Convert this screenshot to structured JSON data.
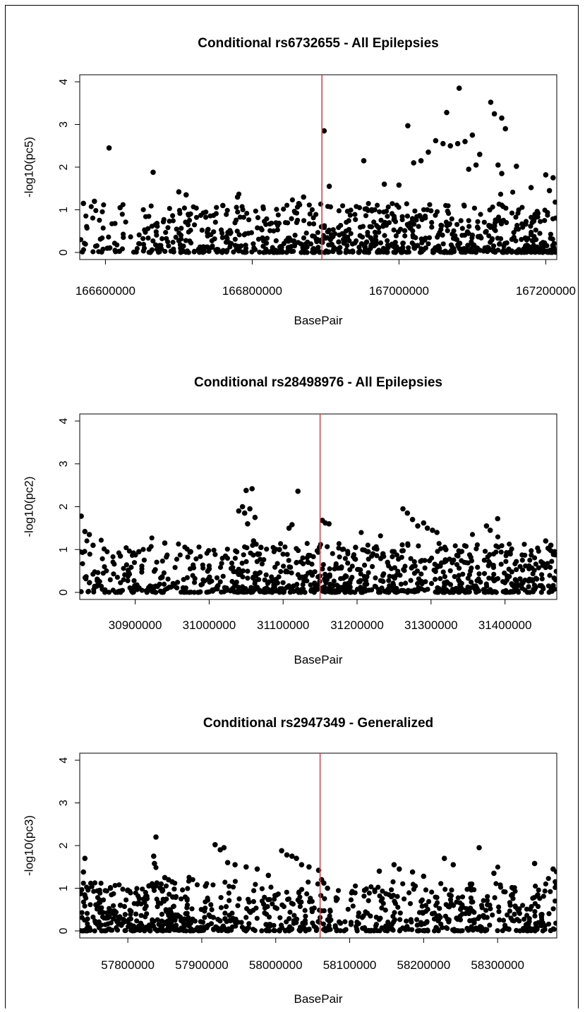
{
  "figure": {
    "colors": {
      "points": "#000000",
      "marker_line": "#d9454e",
      "axis": "#000000"
    }
  },
  "chart_data": [
    {
      "type": "scatter",
      "title": "Conditional rs6732655 - All Epilepsies",
      "xlabel": "BasePair",
      "ylabel": "-log10(pc5)",
      "xlim": [
        166565000,
        167215000
      ],
      "ylim": [
        0,
        4
      ],
      "xticks": [
        166600000,
        166800000,
        167000000,
        167200000
      ],
      "xtick_labels": [
        "166600000",
        "166800000",
        "167000000",
        "167200000"
      ],
      "yticks": [
        0,
        1,
        2,
        3,
        4
      ],
      "ytick_labels": [
        "0",
        "1",
        "2",
        "3",
        "4"
      ],
      "marker_line_x": 166895000,
      "grid": false,
      "legend": "none",
      "density": [
        {
          "from": 166565000,
          "to": 166650000,
          "w": 1.0
        },
        {
          "from": 166650000,
          "to": 166880000,
          "w": 2.2
        },
        {
          "from": 166880000,
          "to": 167215000,
          "w": 3.0
        }
      ],
      "points": [
        [
          166605000,
          2.45
        ],
        [
          166665000,
          1.88
        ],
        [
          166898000,
          2.85
        ],
        [
          166952000,
          2.15
        ],
        [
          167012000,
          2.97
        ],
        [
          167065000,
          3.28
        ],
        [
          167082000,
          3.85
        ],
        [
          167125000,
          3.52
        ],
        [
          167130000,
          3.25
        ],
        [
          167140000,
          3.15
        ],
        [
          167145000,
          2.9
        ],
        [
          167100000,
          2.75
        ],
        [
          167090000,
          2.6
        ],
        [
          167080000,
          2.55
        ],
        [
          167070000,
          2.5
        ],
        [
          167060000,
          2.55
        ],
        [
          167050000,
          2.62
        ],
        [
          167040000,
          2.35
        ],
        [
          167030000,
          2.15
        ],
        [
          167020000,
          2.1
        ],
        [
          167110000,
          2.3
        ],
        [
          167105000,
          2.05
        ],
        [
          167095000,
          1.95
        ],
        [
          167135000,
          2.05
        ],
        [
          167140000,
          1.85
        ],
        [
          167160000,
          2.02
        ],
        [
          167180000,
          1.52
        ],
        [
          167200000,
          1.82
        ],
        [
          167210000,
          1.75
        ],
        [
          167205000,
          1.45
        ],
        [
          166700000,
          1.42
        ],
        [
          166710000,
          1.35
        ],
        [
          166780000,
          1.3
        ],
        [
          166870000,
          1.3
        ],
        [
          166760000,
          1.1
        ],
        [
          166570000,
          1.15
        ],
        [
          166585000,
          1.2
        ],
        [
          166620000,
          1.05
        ],
        [
          166905000,
          1.55
        ],
        [
          166980000,
          1.6
        ],
        [
          167000000,
          1.58
        ],
        [
          167160000,
          0.55
        ],
        [
          167170000,
          0.08
        ],
        [
          167180000,
          0.12
        ],
        [
          167190000,
          0.05
        ]
      ]
    },
    {
      "type": "scatter",
      "title": "Conditional rs28498976 - All Epilepsies",
      "xlabel": "BasePair",
      "ylabel": "-log10(pc2)",
      "xlim": [
        30825000,
        31470000
      ],
      "ylim": [
        0,
        4
      ],
      "xticks": [
        30900000,
        31000000,
        31100000,
        31200000,
        31300000,
        31400000
      ],
      "xtick_labels": [
        "30900000",
        "31000000",
        "31100000",
        "31200000",
        "31300000",
        "31400000"
      ],
      "yticks": [
        0,
        1,
        2,
        3,
        4
      ],
      "ytick_labels": [
        "0",
        "1",
        "2",
        "3",
        "4"
      ],
      "marker_line_x": 31150000,
      "grid": false,
      "legend": "none",
      "density": [
        {
          "from": 30825000,
          "to": 31030000,
          "w": 1.0
        },
        {
          "from": 31030000,
          "to": 31100000,
          "w": 1.6
        },
        {
          "from": 31100000,
          "to": 31470000,
          "w": 1.4
        }
      ],
      "points": [
        [
          30827000,
          1.78
        ],
        [
          30832000,
          1.42
        ],
        [
          30838000,
          1.35
        ],
        [
          30843000,
          1.1
        ],
        [
          31040000,
          1.9
        ],
        [
          31045000,
          2.0
        ],
        [
          31050000,
          2.38
        ],
        [
          31058000,
          2.42
        ],
        [
          31055000,
          1.95
        ],
        [
          31062000,
          1.75
        ],
        [
          31048000,
          1.85
        ],
        [
          31052000,
          1.6
        ],
        [
          31120000,
          2.36
        ],
        [
          31112000,
          1.58
        ],
        [
          31108000,
          1.5
        ],
        [
          31153000,
          1.68
        ],
        [
          31157000,
          1.62
        ],
        [
          31162000,
          1.6
        ],
        [
          31262000,
          1.95
        ],
        [
          31268000,
          1.85
        ],
        [
          31275000,
          1.7
        ],
        [
          31282000,
          1.55
        ],
        [
          31290000,
          1.62
        ],
        [
          31295000,
          1.5
        ],
        [
          31302000,
          1.45
        ],
        [
          31308000,
          1.4
        ],
        [
          31375000,
          1.55
        ],
        [
          31380000,
          1.45
        ],
        [
          31390000,
          1.72
        ],
        [
          31455000,
          1.2
        ],
        [
          31462000,
          1.1
        ],
        [
          31467000,
          0.95
        ],
        [
          31060000,
          1.2
        ],
        [
          31070000,
          1.05
        ],
        [
          31095000,
          1.0
        ],
        [
          31198000,
          1.05
        ],
        [
          31215000,
          0.95
        ],
        [
          31235000,
          0.9
        ],
        [
          31250000,
          0.95
        ],
        [
          31320000,
          1.0
        ],
        [
          30940000,
          1.15
        ],
        [
          30975000,
          0.95
        ],
        [
          30880000,
          0.85
        ],
        [
          30905000,
          0.95
        ],
        [
          31000000,
          0.55
        ]
      ]
    },
    {
      "type": "scatter",
      "title": "Conditional rs2947349 - Generalized",
      "xlabel": "BasePair",
      "ylabel": "-log10(pc3)",
      "xlim": [
        57735000,
        58380000
      ],
      "ylim": [
        0,
        4
      ],
      "xticks": [
        57800000,
        57900000,
        58000000,
        58100000,
        58200000,
        58300000
      ],
      "xtick_labels": [
        "57800000",
        "57900000",
        "58000000",
        "58100000",
        "58200000",
        "58300000"
      ],
      "yticks": [
        0,
        1,
        2,
        3,
        4
      ],
      "ytick_labels": [
        "0",
        "1",
        "2",
        "3",
        "4"
      ],
      "marker_line_x": 58060000,
      "grid": false,
      "legend": "none",
      "density": [
        {
          "from": 57735000,
          "to": 57900000,
          "w": 2.2
        },
        {
          "from": 57900000,
          "to": 58100000,
          "w": 1.2
        },
        {
          "from": 58100000,
          "to": 58380000,
          "w": 1.3
        }
      ],
      "points": [
        [
          57742000,
          1.7
        ],
        [
          57740000,
          1.38
        ],
        [
          57838000,
          2.2
        ],
        [
          57835000,
          1.75
        ],
        [
          57836000,
          1.58
        ],
        [
          57850000,
          1.25
        ],
        [
          57855000,
          1.2
        ],
        [
          57845000,
          1.1
        ],
        [
          57860000,
          1.15
        ],
        [
          57918000,
          2.02
        ],
        [
          57930000,
          1.95
        ],
        [
          57925000,
          1.9
        ],
        [
          57935000,
          1.6
        ],
        [
          57945000,
          1.55
        ],
        [
          57960000,
          1.5
        ],
        [
          58008000,
          1.88
        ],
        [
          58015000,
          1.78
        ],
        [
          58022000,
          1.75
        ],
        [
          58028000,
          1.7
        ],
        [
          58035000,
          1.55
        ],
        [
          58045000,
          1.5
        ],
        [
          58058000,
          1.42
        ],
        [
          58062000,
          1.2
        ],
        [
          58065000,
          1.12
        ],
        [
          58070000,
          1.0
        ],
        [
          58140000,
          1.4
        ],
        [
          58160000,
          1.55
        ],
        [
          58167000,
          1.45
        ],
        [
          58185000,
          1.38
        ],
        [
          58200000,
          1.28
        ],
        [
          58228000,
          1.7
        ],
        [
          58240000,
          1.55
        ],
        [
          58275000,
          1.95
        ],
        [
          58295000,
          1.35
        ],
        [
          58350000,
          1.58
        ],
        [
          58375000,
          1.45
        ],
        [
          58378000,
          1.15
        ],
        [
          57990000,
          1.3
        ],
        [
          57975000,
          1.45
        ],
        [
          57905000,
          1.05
        ],
        [
          57760000,
          0.55
        ],
        [
          57790000,
          0.6
        ],
        [
          57880000,
          0.75
        ],
        [
          58120000,
          0.95
        ],
        [
          58320000,
          0.85
        ]
      ]
    }
  ]
}
